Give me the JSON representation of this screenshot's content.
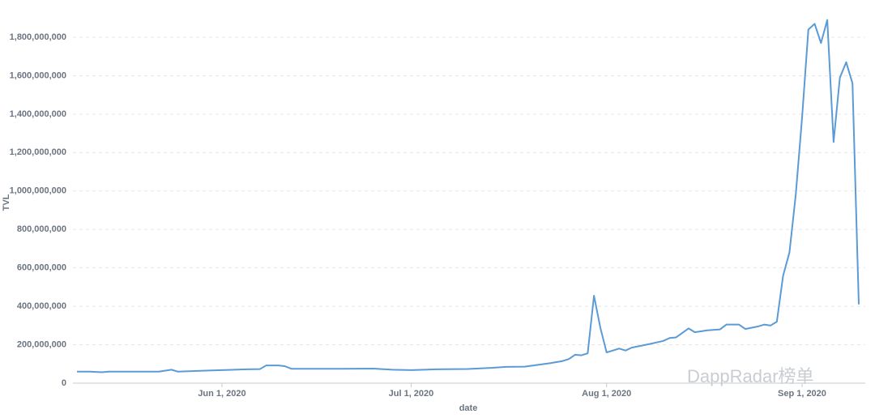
{
  "chart_data": {
    "type": "line",
    "y_label": "TVL",
    "x_label": "date",
    "watermark": "DappRadar榜单",
    "color": "#5b9bd5",
    "x": [
      "2020-05-09",
      "2020-05-11",
      "2020-05-13",
      "2020-05-14",
      "2020-05-18",
      "2020-05-22",
      "2020-05-24",
      "2020-05-25",
      "2020-05-29",
      "2020-06-03",
      "2020-06-05",
      "2020-06-07",
      "2020-06-08",
      "2020-06-10",
      "2020-06-11",
      "2020-06-12",
      "2020-06-20",
      "2020-06-25",
      "2020-06-28",
      "2020-07-01",
      "2020-07-05",
      "2020-07-10",
      "2020-07-14",
      "2020-07-16",
      "2020-07-19",
      "2020-07-21",
      "2020-07-23",
      "2020-07-25",
      "2020-07-26",
      "2020-07-27",
      "2020-07-28",
      "2020-07-29",
      "2020-07-30",
      "2020-07-31",
      "2020-08-01",
      "2020-08-03",
      "2020-08-04",
      "2020-08-05",
      "2020-08-08",
      "2020-08-10",
      "2020-08-11",
      "2020-08-12",
      "2020-08-14",
      "2020-08-15",
      "2020-08-17",
      "2020-08-19",
      "2020-08-20",
      "2020-08-22",
      "2020-08-23",
      "2020-08-25",
      "2020-08-26",
      "2020-08-27",
      "2020-08-28",
      "2020-08-29",
      "2020-08-30",
      "2020-08-31",
      "2020-09-01",
      "2020-09-02",
      "2020-09-03",
      "2020-09-04",
      "2020-09-05",
      "2020-09-06",
      "2020-09-07",
      "2020-09-08",
      "2020-09-09",
      "2020-09-10"
    ],
    "values": [
      60000000,
      60000000,
      57000000,
      60000000,
      60000000,
      60000000,
      70000000,
      60000000,
      65000000,
      70000000,
      72000000,
      73000000,
      92000000,
      92000000,
      88000000,
      75000000,
      75000000,
      76000000,
      70000000,
      68000000,
      72000000,
      74000000,
      80000000,
      85000000,
      86000000,
      95000000,
      104000000,
      115000000,
      125000000,
      148000000,
      145000000,
      155000000,
      455000000,
      290000000,
      160000000,
      180000000,
      170000000,
      185000000,
      205000000,
      220000000,
      235000000,
      238000000,
      285000000,
      265000000,
      275000000,
      280000000,
      305000000,
      305000000,
      282000000,
      295000000,
      305000000,
      300000000,
      320000000,
      560000000,
      680000000,
      980000000,
      1380000000,
      1840000000,
      1870000000,
      1770000000,
      1890000000,
      1255000000,
      1590000000,
      1670000000,
      1560000000,
      410000000
    ],
    "xlim": [
      "2020-05-09",
      "2020-09-10"
    ],
    "xticks": [
      {
        "value": "2020-06-01",
        "label": "Jun 1, 2020"
      },
      {
        "value": "2020-07-01",
        "label": "Jul 1, 2020"
      },
      {
        "value": "2020-08-01",
        "label": "Aug 1, 2020"
      },
      {
        "value": "2020-09-01",
        "label": "Sep 1, 2020"
      }
    ],
    "ylim": [
      0,
      1800000000
    ],
    "yticks": [
      0,
      {
        "value": 200000000,
        "label": "200,000,000"
      },
      {
        "value": 400000000,
        "label": "400,000,000"
      },
      {
        "value": 600000000,
        "label": "600,000,000"
      },
      {
        "value": 800000000,
        "label": "800,000,000"
      },
      {
        "value": 1000000000,
        "label": "1,000,000,000"
      },
      {
        "value": 1200000000,
        "label": "1,200,000,000"
      },
      {
        "value": 1400000000,
        "label": "1,400,000,000"
      },
      {
        "value": 1600000000,
        "label": "1,600,000,000"
      },
      {
        "value": 1800000000,
        "label": "1,800,000,000"
      }
    ],
    "grid": true
  }
}
